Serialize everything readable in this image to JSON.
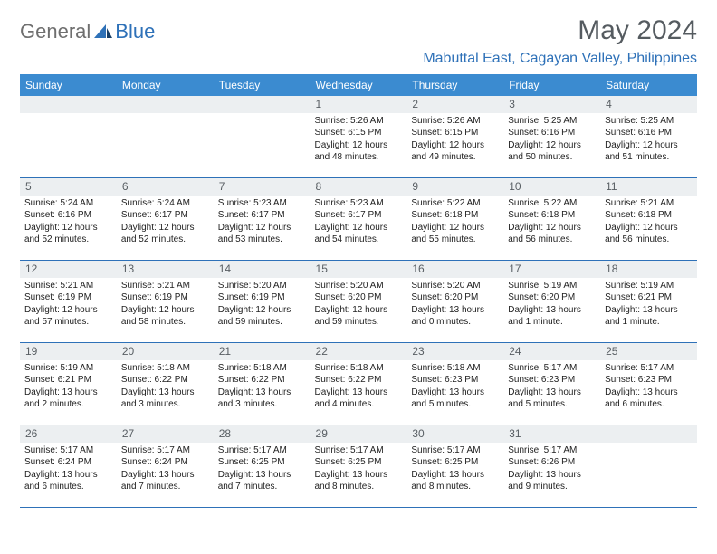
{
  "logo": {
    "part1": "General",
    "part2": "Blue"
  },
  "title": "May 2024",
  "location": "Mabuttal East, Cagayan Valley, Philippines",
  "colors": {
    "header_bg": "#3b8bd0",
    "header_fg": "#ffffff",
    "accent": "#2e71b8",
    "daynum_bg": "#eceff1",
    "daynum_fg": "#585e63",
    "title_fg": "#555b60",
    "logo_gray": "#6f6f6f"
  },
  "typography": {
    "title_fontsize": 30,
    "location_fontsize": 16,
    "weekday_fontsize": 12,
    "daynum_fontsize": 12,
    "body_fontsize": 10
  },
  "weekdays": [
    "Sunday",
    "Monday",
    "Tuesday",
    "Wednesday",
    "Thursday",
    "Friday",
    "Saturday"
  ],
  "weeks": [
    [
      {
        "day": "",
        "lines": [
          "",
          "",
          "",
          ""
        ]
      },
      {
        "day": "",
        "lines": [
          "",
          "",
          "",
          ""
        ]
      },
      {
        "day": "",
        "lines": [
          "",
          "",
          "",
          ""
        ]
      },
      {
        "day": "1",
        "lines": [
          "Sunrise: 5:26 AM",
          "Sunset: 6:15 PM",
          "Daylight: 12 hours",
          "and 48 minutes."
        ]
      },
      {
        "day": "2",
        "lines": [
          "Sunrise: 5:26 AM",
          "Sunset: 6:15 PM",
          "Daylight: 12 hours",
          "and 49 minutes."
        ]
      },
      {
        "day": "3",
        "lines": [
          "Sunrise: 5:25 AM",
          "Sunset: 6:16 PM",
          "Daylight: 12 hours",
          "and 50 minutes."
        ]
      },
      {
        "day": "4",
        "lines": [
          "Sunrise: 5:25 AM",
          "Sunset: 6:16 PM",
          "Daylight: 12 hours",
          "and 51 minutes."
        ]
      }
    ],
    [
      {
        "day": "5",
        "lines": [
          "Sunrise: 5:24 AM",
          "Sunset: 6:16 PM",
          "Daylight: 12 hours",
          "and 52 minutes."
        ]
      },
      {
        "day": "6",
        "lines": [
          "Sunrise: 5:24 AM",
          "Sunset: 6:17 PM",
          "Daylight: 12 hours",
          "and 52 minutes."
        ]
      },
      {
        "day": "7",
        "lines": [
          "Sunrise: 5:23 AM",
          "Sunset: 6:17 PM",
          "Daylight: 12 hours",
          "and 53 minutes."
        ]
      },
      {
        "day": "8",
        "lines": [
          "Sunrise: 5:23 AM",
          "Sunset: 6:17 PM",
          "Daylight: 12 hours",
          "and 54 minutes."
        ]
      },
      {
        "day": "9",
        "lines": [
          "Sunrise: 5:22 AM",
          "Sunset: 6:18 PM",
          "Daylight: 12 hours",
          "and 55 minutes."
        ]
      },
      {
        "day": "10",
        "lines": [
          "Sunrise: 5:22 AM",
          "Sunset: 6:18 PM",
          "Daylight: 12 hours",
          "and 56 minutes."
        ]
      },
      {
        "day": "11",
        "lines": [
          "Sunrise: 5:21 AM",
          "Sunset: 6:18 PM",
          "Daylight: 12 hours",
          "and 56 minutes."
        ]
      }
    ],
    [
      {
        "day": "12",
        "lines": [
          "Sunrise: 5:21 AM",
          "Sunset: 6:19 PM",
          "Daylight: 12 hours",
          "and 57 minutes."
        ]
      },
      {
        "day": "13",
        "lines": [
          "Sunrise: 5:21 AM",
          "Sunset: 6:19 PM",
          "Daylight: 12 hours",
          "and 58 minutes."
        ]
      },
      {
        "day": "14",
        "lines": [
          "Sunrise: 5:20 AM",
          "Sunset: 6:19 PM",
          "Daylight: 12 hours",
          "and 59 minutes."
        ]
      },
      {
        "day": "15",
        "lines": [
          "Sunrise: 5:20 AM",
          "Sunset: 6:20 PM",
          "Daylight: 12 hours",
          "and 59 minutes."
        ]
      },
      {
        "day": "16",
        "lines": [
          "Sunrise: 5:20 AM",
          "Sunset: 6:20 PM",
          "Daylight: 13 hours",
          "and 0 minutes."
        ]
      },
      {
        "day": "17",
        "lines": [
          "Sunrise: 5:19 AM",
          "Sunset: 6:20 PM",
          "Daylight: 13 hours",
          "and 1 minute."
        ]
      },
      {
        "day": "18",
        "lines": [
          "Sunrise: 5:19 AM",
          "Sunset: 6:21 PM",
          "Daylight: 13 hours",
          "and 1 minute."
        ]
      }
    ],
    [
      {
        "day": "19",
        "lines": [
          "Sunrise: 5:19 AM",
          "Sunset: 6:21 PM",
          "Daylight: 13 hours",
          "and 2 minutes."
        ]
      },
      {
        "day": "20",
        "lines": [
          "Sunrise: 5:18 AM",
          "Sunset: 6:22 PM",
          "Daylight: 13 hours",
          "and 3 minutes."
        ]
      },
      {
        "day": "21",
        "lines": [
          "Sunrise: 5:18 AM",
          "Sunset: 6:22 PM",
          "Daylight: 13 hours",
          "and 3 minutes."
        ]
      },
      {
        "day": "22",
        "lines": [
          "Sunrise: 5:18 AM",
          "Sunset: 6:22 PM",
          "Daylight: 13 hours",
          "and 4 minutes."
        ]
      },
      {
        "day": "23",
        "lines": [
          "Sunrise: 5:18 AM",
          "Sunset: 6:23 PM",
          "Daylight: 13 hours",
          "and 5 minutes."
        ]
      },
      {
        "day": "24",
        "lines": [
          "Sunrise: 5:17 AM",
          "Sunset: 6:23 PM",
          "Daylight: 13 hours",
          "and 5 minutes."
        ]
      },
      {
        "day": "25",
        "lines": [
          "Sunrise: 5:17 AM",
          "Sunset: 6:23 PM",
          "Daylight: 13 hours",
          "and 6 minutes."
        ]
      }
    ],
    [
      {
        "day": "26",
        "lines": [
          "Sunrise: 5:17 AM",
          "Sunset: 6:24 PM",
          "Daylight: 13 hours",
          "and 6 minutes."
        ]
      },
      {
        "day": "27",
        "lines": [
          "Sunrise: 5:17 AM",
          "Sunset: 6:24 PM",
          "Daylight: 13 hours",
          "and 7 minutes."
        ]
      },
      {
        "day": "28",
        "lines": [
          "Sunrise: 5:17 AM",
          "Sunset: 6:25 PM",
          "Daylight: 13 hours",
          "and 7 minutes."
        ]
      },
      {
        "day": "29",
        "lines": [
          "Sunrise: 5:17 AM",
          "Sunset: 6:25 PM",
          "Daylight: 13 hours",
          "and 8 minutes."
        ]
      },
      {
        "day": "30",
        "lines": [
          "Sunrise: 5:17 AM",
          "Sunset: 6:25 PM",
          "Daylight: 13 hours",
          "and 8 minutes."
        ]
      },
      {
        "day": "31",
        "lines": [
          "Sunrise: 5:17 AM",
          "Sunset: 6:26 PM",
          "Daylight: 13 hours",
          "and 9 minutes."
        ]
      },
      {
        "day": "",
        "lines": [
          "",
          "",
          "",
          ""
        ]
      }
    ]
  ]
}
